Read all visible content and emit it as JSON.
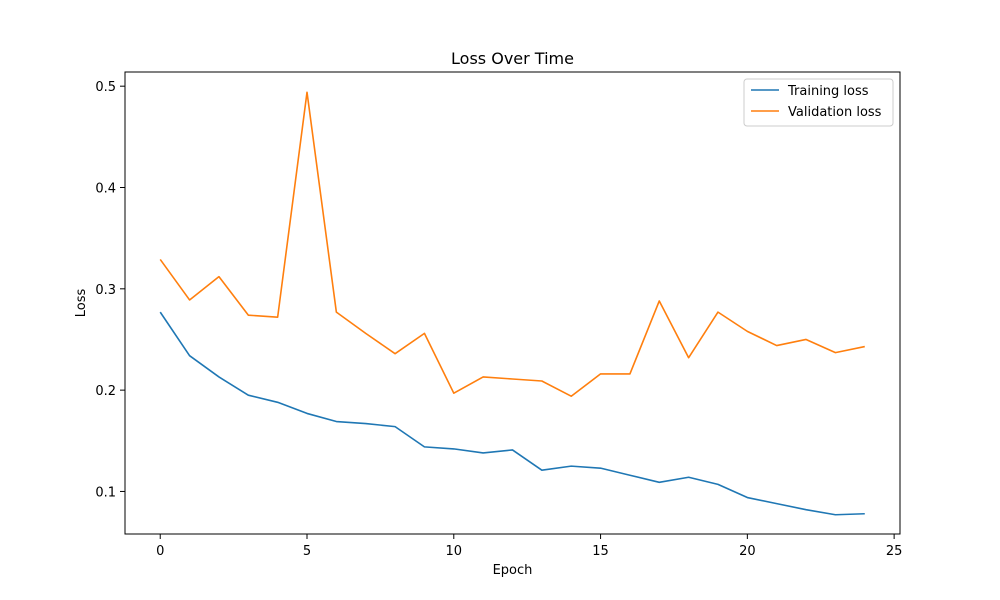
{
  "chart_data": {
    "type": "line",
    "title": "Loss Over Time",
    "xlabel": "Epoch",
    "ylabel": "Loss",
    "xlim": [
      -1.2,
      25.2
    ],
    "ylim": [
      0.058,
      0.514
    ],
    "xticks": [
      0,
      5,
      10,
      15,
      20,
      25
    ],
    "yticks": [
      0.1,
      0.2,
      0.3,
      0.4,
      0.5
    ],
    "grid": false,
    "legend_position": "top-right",
    "x": [
      0,
      1,
      2,
      3,
      4,
      5,
      6,
      7,
      8,
      9,
      10,
      11,
      12,
      13,
      14,
      15,
      16,
      17,
      18,
      19,
      20,
      21,
      22,
      23,
      24
    ],
    "series": [
      {
        "name": "Training loss",
        "color": "#1f77b4",
        "values": [
          0.277,
          0.234,
          0.213,
          0.195,
          0.188,
          0.177,
          0.169,
          0.167,
          0.164,
          0.144,
          0.142,
          0.138,
          0.141,
          0.121,
          0.125,
          0.123,
          0.116,
          0.109,
          0.114,
          0.107,
          0.094,
          0.088,
          0.082,
          0.077,
          0.078
        ]
      },
      {
        "name": "Validation loss",
        "color": "#ff7f0e",
        "values": [
          0.329,
          0.289,
          0.312,
          0.274,
          0.272,
          0.494,
          0.277,
          0.256,
          0.236,
          0.256,
          0.197,
          0.213,
          0.211,
          0.209,
          0.194,
          0.216,
          0.216,
          0.288,
          0.232,
          0.277,
          0.258,
          0.244,
          0.25,
          0.237,
          0.243
        ]
      }
    ]
  }
}
